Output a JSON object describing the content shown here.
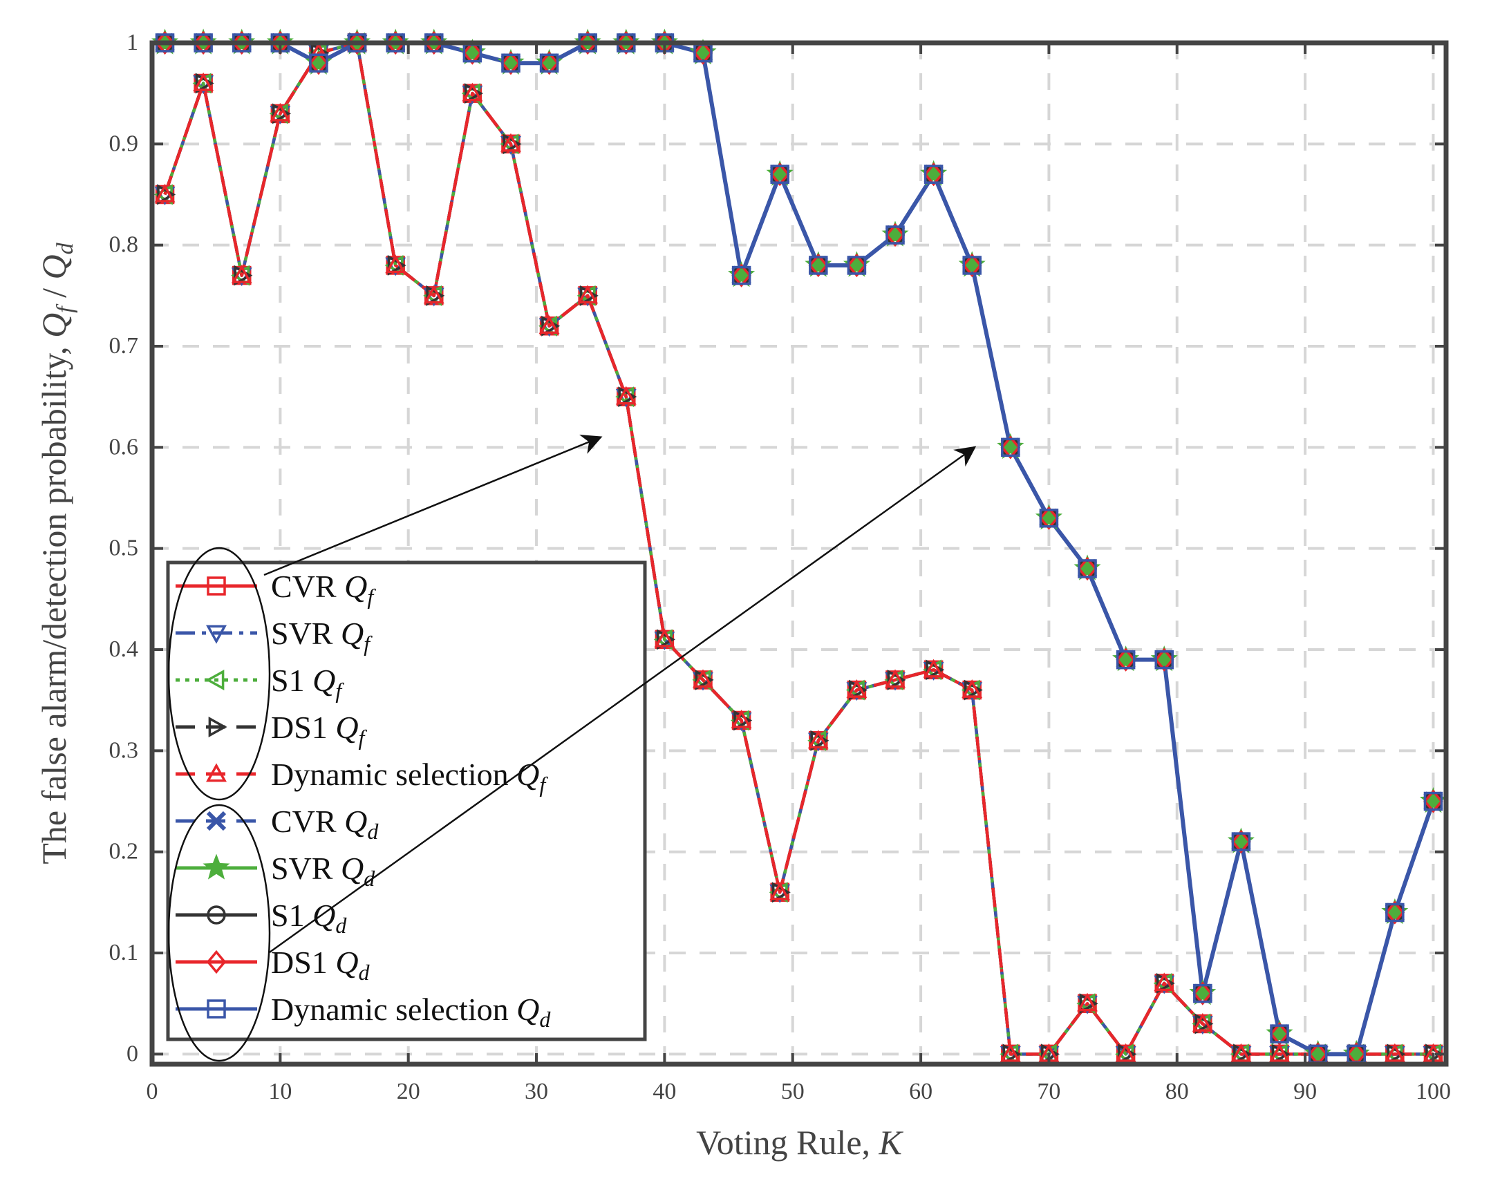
{
  "chart_data": {
    "type": "line",
    "title": "",
    "xlabel": "Voting Rule, ",
    "xlabel_var": "K",
    "ylabel": "The false alarm/detection probability, ",
    "ylabel_var": "Q",
    "ylabel_sub1": "f",
    "ylabel_sep": " / ",
    "ylabel_sub2": "d",
    "xlim": [
      0,
      101
    ],
    "ylim": [
      -0.01,
      1.0
    ],
    "xticks": [
      0,
      10,
      20,
      30,
      40,
      50,
      60,
      70,
      80,
      90,
      100
    ],
    "yticks": [
      0,
      0.1,
      0.2,
      0.3,
      0.4,
      0.5,
      0.6,
      0.7,
      0.8,
      0.9,
      1
    ],
    "ytick_labels": [
      "0",
      "0.1",
      "0.2",
      "0.3",
      "0.4",
      "0.5",
      "0.6",
      "0.7",
      "0.8",
      "0.9",
      "1"
    ],
    "xtick_labels": [
      "0",
      "10",
      "20",
      "30",
      "40",
      "50",
      "60",
      "70",
      "80",
      "90",
      "100"
    ],
    "grid": true,
    "legend_position": "lower-left",
    "x": [
      1,
      4,
      7,
      10,
      13,
      16,
      19,
      22,
      25,
      28,
      31,
      34,
      37,
      40,
      43,
      46,
      49,
      52,
      55,
      58,
      61,
      64,
      67,
      70,
      73,
      76,
      79,
      82,
      85,
      88,
      91,
      94,
      97,
      100
    ],
    "series": [
      {
        "name": "CVR",
        "sub": "f",
        "color": "#e8262b",
        "style": "solid",
        "marker": "square",
        "values": [
          0.85,
          0.96,
          0.77,
          0.93,
          0.99,
          1.0,
          0.78,
          0.75,
          0.95,
          0.9,
          0.72,
          0.75,
          0.65,
          0.41,
          0.37,
          0.33,
          0.16,
          0.31,
          0.36,
          0.37,
          0.38,
          0.36,
          0.0,
          0.0,
          0.05,
          0.0,
          0.07,
          0.03,
          0.0,
          0.0,
          0.0,
          0.0,
          0.0,
          0.0
        ]
      },
      {
        "name": "SVR",
        "sub": "f",
        "color": "#3a56a8",
        "style": "dashdot",
        "marker": "triangle-down",
        "values": [
          0.85,
          0.96,
          0.77,
          0.93,
          0.99,
          1.0,
          0.78,
          0.75,
          0.95,
          0.9,
          0.72,
          0.75,
          0.65,
          0.41,
          0.37,
          0.33,
          0.16,
          0.31,
          0.36,
          0.37,
          0.38,
          0.36,
          0.0,
          0.0,
          0.05,
          0.0,
          0.07,
          0.03,
          0.0,
          0.0,
          0.0,
          0.0,
          0.0,
          0.0
        ]
      },
      {
        "name": "S1",
        "sub": "f",
        "color": "#4dae3c",
        "style": "dotted",
        "marker": "triangle-left",
        "values": [
          0.85,
          0.96,
          0.77,
          0.93,
          0.99,
          1.0,
          0.78,
          0.75,
          0.95,
          0.9,
          0.72,
          0.75,
          0.65,
          0.41,
          0.37,
          0.33,
          0.16,
          0.31,
          0.36,
          0.37,
          0.38,
          0.36,
          0.0,
          0.0,
          0.05,
          0.0,
          0.07,
          0.03,
          0.0,
          0.0,
          0.0,
          0.0,
          0.0,
          0.0
        ]
      },
      {
        "name": "DS1",
        "sub": "f",
        "color": "#333333",
        "style": "dashed",
        "marker": "triangle-right",
        "values": [
          0.85,
          0.96,
          0.77,
          0.93,
          0.99,
          1.0,
          0.78,
          0.75,
          0.95,
          0.9,
          0.72,
          0.75,
          0.65,
          0.41,
          0.37,
          0.33,
          0.16,
          0.31,
          0.36,
          0.37,
          0.38,
          0.36,
          0.0,
          0.0,
          0.05,
          0.0,
          0.07,
          0.03,
          0.0,
          0.0,
          0.0,
          0.0,
          0.0,
          0.0
        ]
      },
      {
        "name": "Dynamic selection",
        "sub": "f",
        "color": "#e8262b",
        "style": "dashed",
        "marker": "triangle-up",
        "values": [
          0.85,
          0.96,
          0.77,
          0.93,
          0.99,
          1.0,
          0.78,
          0.75,
          0.95,
          0.9,
          0.72,
          0.75,
          0.65,
          0.41,
          0.37,
          0.33,
          0.16,
          0.31,
          0.36,
          0.37,
          0.38,
          0.36,
          0.0,
          0.0,
          0.05,
          0.0,
          0.07,
          0.03,
          0.0,
          0.0,
          0.0,
          0.0,
          0.0,
          0.0
        ]
      },
      {
        "name": "CVR",
        "sub": "d",
        "color": "#3a56a8",
        "style": "dashed",
        "marker": "x",
        "values": [
          1.0,
          1.0,
          1.0,
          1.0,
          0.98,
          1.0,
          1.0,
          1.0,
          0.99,
          0.98,
          0.98,
          1.0,
          1.0,
          1.0,
          0.99,
          0.77,
          0.87,
          0.78,
          0.78,
          0.81,
          0.87,
          0.78,
          0.6,
          0.53,
          0.48,
          0.39,
          0.39,
          0.06,
          0.21,
          0.02,
          0.0,
          0.0,
          0.14,
          0.25
        ]
      },
      {
        "name": "SVR",
        "sub": "d",
        "color": "#4dae3c",
        "style": "solid",
        "marker": "star",
        "values": [
          1.0,
          1.0,
          1.0,
          1.0,
          0.98,
          1.0,
          1.0,
          1.0,
          0.99,
          0.98,
          0.98,
          1.0,
          1.0,
          1.0,
          0.99,
          0.77,
          0.87,
          0.78,
          0.78,
          0.81,
          0.87,
          0.78,
          0.6,
          0.53,
          0.48,
          0.39,
          0.39,
          0.06,
          0.21,
          0.02,
          0.0,
          0.0,
          0.14,
          0.25
        ]
      },
      {
        "name": "S1",
        "sub": "d",
        "color": "#333333",
        "style": "solid",
        "marker": "circle",
        "values": [
          1.0,
          1.0,
          1.0,
          1.0,
          0.98,
          1.0,
          1.0,
          1.0,
          0.99,
          0.98,
          0.98,
          1.0,
          1.0,
          1.0,
          0.99,
          0.77,
          0.87,
          0.78,
          0.78,
          0.81,
          0.87,
          0.78,
          0.6,
          0.53,
          0.48,
          0.39,
          0.39,
          0.06,
          0.21,
          0.02,
          0.0,
          0.0,
          0.14,
          0.25
        ]
      },
      {
        "name": "DS1",
        "sub": "d",
        "color": "#e8262b",
        "style": "solid",
        "marker": "diamond",
        "values": [
          1.0,
          1.0,
          1.0,
          1.0,
          0.98,
          1.0,
          1.0,
          1.0,
          0.99,
          0.98,
          0.98,
          1.0,
          1.0,
          1.0,
          0.99,
          0.77,
          0.87,
          0.78,
          0.78,
          0.81,
          0.87,
          0.78,
          0.6,
          0.53,
          0.48,
          0.39,
          0.39,
          0.06,
          0.21,
          0.02,
          0.0,
          0.0,
          0.14,
          0.25
        ]
      },
      {
        "name": "Dynamic selection",
        "sub": "d",
        "color": "#3a56a8",
        "style": "solid",
        "marker": "square",
        "values": [
          1.0,
          1.0,
          1.0,
          1.0,
          0.98,
          1.0,
          1.0,
          1.0,
          0.99,
          0.98,
          0.98,
          1.0,
          1.0,
          1.0,
          0.99,
          0.77,
          0.87,
          0.78,
          0.78,
          0.81,
          0.87,
          0.78,
          0.6,
          0.53,
          0.48,
          0.39,
          0.39,
          0.06,
          0.21,
          0.02,
          0.0,
          0.0,
          0.14,
          0.25
        ]
      }
    ],
    "annotations": [
      {
        "type": "arrow",
        "from_legend_group": "Q_f",
        "to": [
          35,
          0.61
        ]
      },
      {
        "type": "arrow",
        "from_legend_group": "Q_d",
        "to": [
          65,
          0.6
        ]
      }
    ],
    "legend_symbol": "Q"
  }
}
